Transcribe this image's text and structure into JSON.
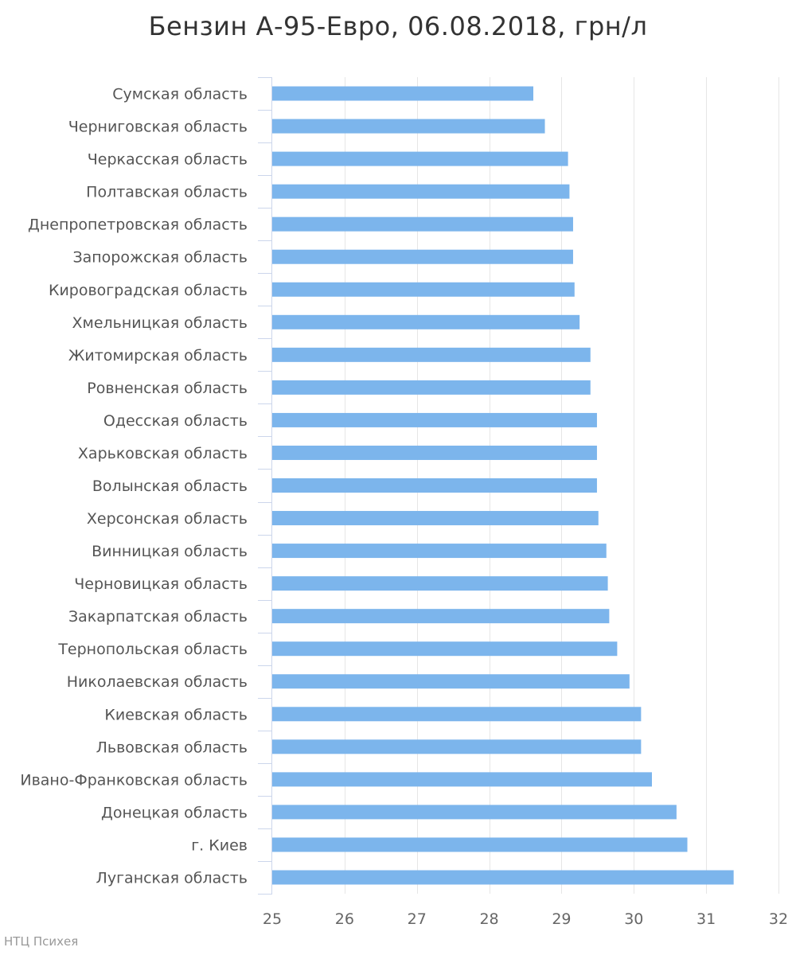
{
  "chart_data": {
    "type": "bar",
    "orientation": "horizontal",
    "title": "Бензин А-95-Евро, 06.08.2018, грн/л",
    "xlim": [
      25,
      32
    ],
    "ticks": [
      "25",
      "26",
      "27",
      "28",
      "29",
      "30",
      "31",
      "32"
    ],
    "grid": true,
    "bar_color": "#7cb5ec",
    "categories": [
      "Сумская область",
      "Черниговская область",
      "Черкасская область",
      "Полтавская область",
      "Днепропетровская область",
      "Запорожская область",
      "Кировоградская область",
      "Хмельницкая область",
      "Житомирская область",
      "Ровненская область",
      "Одесская область",
      "Харьковская область",
      "Волынская область",
      "Херсонская область",
      "Винницкая область",
      "Черновицкая область",
      "Закарпатская область",
      "Тернопольская область",
      "Николаевская область",
      "Киевская область",
      "Львовская область",
      "Ивано-Франковская область",
      "Донецкая область",
      "г. Киев",
      "Луганская область"
    ],
    "values": [
      28.61,
      28.77,
      29.09,
      29.11,
      29.16,
      29.16,
      29.18,
      29.25,
      29.4,
      29.4,
      29.49,
      29.49,
      29.49,
      29.51,
      29.62,
      29.64,
      29.66,
      29.77,
      29.94,
      30.1,
      30.1,
      30.25,
      30.59,
      30.74,
      31.38
    ]
  },
  "credit": "НТЦ Психея"
}
